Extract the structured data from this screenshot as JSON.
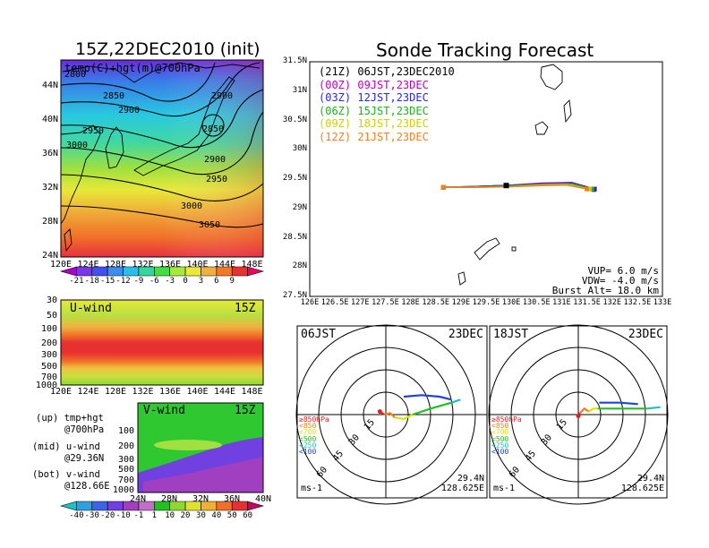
{
  "map_panel": {
    "title": "15Z,22DEC2010 (init)",
    "field_label": "temp(C)+hgt(m)@700hPa",
    "lat_ticks": [
      "44N",
      "40N",
      "36N",
      "32N",
      "28N",
      "24N"
    ],
    "lon_ticks": [
      "120E",
      "124E",
      "128E",
      "132E",
      "136E",
      "140E",
      "144E",
      "148E"
    ],
    "contour_labels": [
      "2800",
      "2850",
      "2900",
      "2900",
      "2950",
      "2850",
      "3000",
      "2900",
      "2950",
      "3000",
      "3050"
    ],
    "colorbar_ticks": [
      "-21",
      "-18",
      "-15",
      "-12",
      "-9",
      "-6",
      "-3",
      "0",
      "3",
      "6",
      "9"
    ],
    "colorbar_colors": [
      "#a800c8",
      "#7838e8",
      "#4050f0",
      "#3c8cf0",
      "#28c0e8",
      "#30d8a0",
      "#40e040",
      "#a8e838",
      "#e8e838",
      "#f0b040",
      "#f07828",
      "#e83030",
      "#f00060"
    ]
  },
  "uwind_panel": {
    "label": "U-wind",
    "time": "15Z",
    "y_ticks": [
      "30",
      "50",
      "100",
      "200",
      "300",
      "500",
      "700",
      "1000"
    ],
    "x_ticks": [
      "120E",
      "124E",
      "128E",
      "132E",
      "136E",
      "140E",
      "144E",
      "148E"
    ]
  },
  "vwind_panel": {
    "label": "V-wind",
    "time": "15Z",
    "y_ticks": [
      "100",
      "200",
      "300",
      "500",
      "700",
      "1000"
    ],
    "x_ticks": [
      "24N",
      "28N",
      "32N",
      "36N",
      "40N"
    ]
  },
  "side_legend": [
    {
      "text": "(up) tmp+hgt"
    },
    {
      "text": "@700hPa"
    },
    {
      "text": "(mid) u-wind"
    },
    {
      "text": "@29.36N"
    },
    {
      "text": "(bot) v-wind"
    },
    {
      "text": "@128.66E"
    }
  ],
  "wind_colorbar": {
    "ticks": [
      "-40",
      "-30",
      "-20",
      "-10",
      "-1",
      "1",
      "10",
      "20",
      "30",
      "40",
      "50",
      "60"
    ],
    "colors": [
      "#20c0c0",
      "#30a0e0",
      "#3c64e8",
      "#7040e0",
      "#a040c0",
      "#c070c8",
      "#20c020",
      "#90d830",
      "#e0e030",
      "#f0b030",
      "#f07028",
      "#e83030",
      "#c80060"
    ]
  },
  "chart_data": [
    {
      "type": "line",
      "title": "Sonde Tracking Forecast",
      "xlabel": "",
      "ylabel": "",
      "xlim": [
        126,
        133
      ],
      "ylim": [
        27.5,
        31.5
      ],
      "x_ticks": [
        "126E",
        "126.5E",
        "127E",
        "127.5E",
        "128E",
        "128.5E",
        "129E",
        "129.5E",
        "130E",
        "130.5E",
        "131E",
        "131.5E",
        "132E",
        "132.5E",
        "133E"
      ],
      "y_ticks": [
        "27.5N",
        "28N",
        "28.5N",
        "29N",
        "29.5N",
        "30N",
        "30.5N",
        "31N",
        "31.5N"
      ],
      "legend_placement": "top-left",
      "series": [
        {
          "name": "(21Z) 06JST,23DEC2010",
          "color": "#000000",
          "x": [
            128.65,
            129.2,
            129.9,
            130.6,
            131.2,
            131.65
          ],
          "y": [
            29.36,
            29.37,
            29.39,
            29.42,
            29.44,
            29.33
          ]
        },
        {
          "name": "(00Z) 09JST,23DEC",
          "color": "#c000c0",
          "x": [
            128.65,
            129.2,
            129.9,
            130.6,
            131.2,
            131.62
          ],
          "y": [
            29.36,
            29.37,
            29.39,
            29.43,
            29.44,
            29.33
          ]
        },
        {
          "name": "(03Z) 12JST,23DEC",
          "color": "#2828e0",
          "x": [
            128.65,
            129.2,
            129.9,
            130.6,
            131.2,
            131.64
          ],
          "y": [
            29.36,
            29.37,
            29.39,
            29.42,
            29.43,
            29.32
          ]
        },
        {
          "name": "(06Z) 15JST,23DEC",
          "color": "#20b020",
          "x": [
            128.65,
            129.2,
            129.9,
            130.6,
            131.2,
            131.6
          ],
          "y": [
            29.36,
            29.36,
            29.38,
            29.41,
            29.42,
            29.33
          ]
        },
        {
          "name": "(09Z) 18JST,23DEC",
          "color": "#d0d000",
          "x": [
            128.65,
            129.2,
            129.9,
            130.6,
            131.1,
            131.55
          ],
          "y": [
            29.36,
            29.36,
            29.37,
            29.4,
            29.41,
            29.33
          ]
        },
        {
          "name": "(12Z) 21JST,23DEC",
          "color": "#f08020",
          "x": [
            128.65,
            129.2,
            129.9,
            130.6,
            131.1,
            131.5
          ],
          "y": [
            29.36,
            29.36,
            29.37,
            29.39,
            29.4,
            29.33
          ]
        }
      ],
      "annotations": [
        "VUP= 6.0 m/s",
        "VDW= -4.0 m/s",
        "Burst Alt= 18.0 km"
      ]
    },
    {
      "type": "line",
      "title": "06JST",
      "date": "23DEC",
      "ring_labels": [
        "15",
        "30",
        "45",
        "60"
      ],
      "level_legend": [
        "≥850hPa",
        "<850",
        "<700",
        "<500",
        "<250",
        "<100"
      ],
      "level_colors": [
        "#e02020",
        "#f08020",
        "#e0e000",
        "#20c020",
        "#20c0c0",
        "#2040e0"
      ],
      "unit": "ms-1",
      "location": [
        "29.4N",
        "128.625E"
      ],
      "series": [
        {
          "name": "hodograph",
          "segments": [
            {
              "color": "#e02020",
              "u": [
                -4,
                -1
              ],
              "v": [
                2,
                0
              ]
            },
            {
              "color": "#f08020",
              "u": [
                -1,
                3,
                6
              ],
              "v": [
                0,
                1,
                -2
              ]
            },
            {
              "color": "#e0e000",
              "u": [
                6,
                12,
                18
              ],
              "v": [
                -2,
                -3,
                0
              ]
            },
            {
              "color": "#20c020",
              "u": [
                18,
                30,
                44
              ],
              "v": [
                0,
                4,
                8
              ]
            },
            {
              "color": "#20c0c0",
              "u": [
                44,
                50
              ],
              "v": [
                8,
                10
              ]
            },
            {
              "color": "#2040e0",
              "u": [
                12,
                24,
                36,
                44
              ],
              "v": [
                12,
                13,
                12,
                10
              ]
            }
          ]
        }
      ]
    },
    {
      "type": "line",
      "title": "18JST",
      "date": "23DEC",
      "ring_labels": [
        "15",
        "30",
        "45",
        "60"
      ],
      "level_legend": [
        "≥850hPa",
        "<850",
        "<700",
        "<500",
        "<250",
        "<100"
      ],
      "level_colors": [
        "#e02020",
        "#f08020",
        "#e0e000",
        "#20c020",
        "#20c0c0",
        "#2040e0"
      ],
      "unit": "ms-1",
      "location": [
        "29.4N",
        "128.625E"
      ],
      "series": [
        {
          "name": "hodograph",
          "segments": [
            {
              "color": "#e02020",
              "u": [
                0,
                1
              ],
              "v": [
                -1,
                1
              ]
            },
            {
              "color": "#f08020",
              "u": [
                1,
                4,
                7
              ],
              "v": [
                1,
                4,
                2
              ]
            },
            {
              "color": "#e0e000",
              "u": [
                7,
                10,
                13
              ],
              "v": [
                2,
                4,
                4
              ]
            },
            {
              "color": "#20c020",
              "u": [
                13,
                30,
                46
              ],
              "v": [
                4,
                4,
                4
              ]
            },
            {
              "color": "#20c0c0",
              "u": [
                46,
                55
              ],
              "v": [
                4,
                5
              ]
            },
            {
              "color": "#2040e0",
              "u": [
                14,
                28,
                40
              ],
              "v": [
                8,
                8,
                7
              ]
            }
          ]
        }
      ]
    }
  ]
}
